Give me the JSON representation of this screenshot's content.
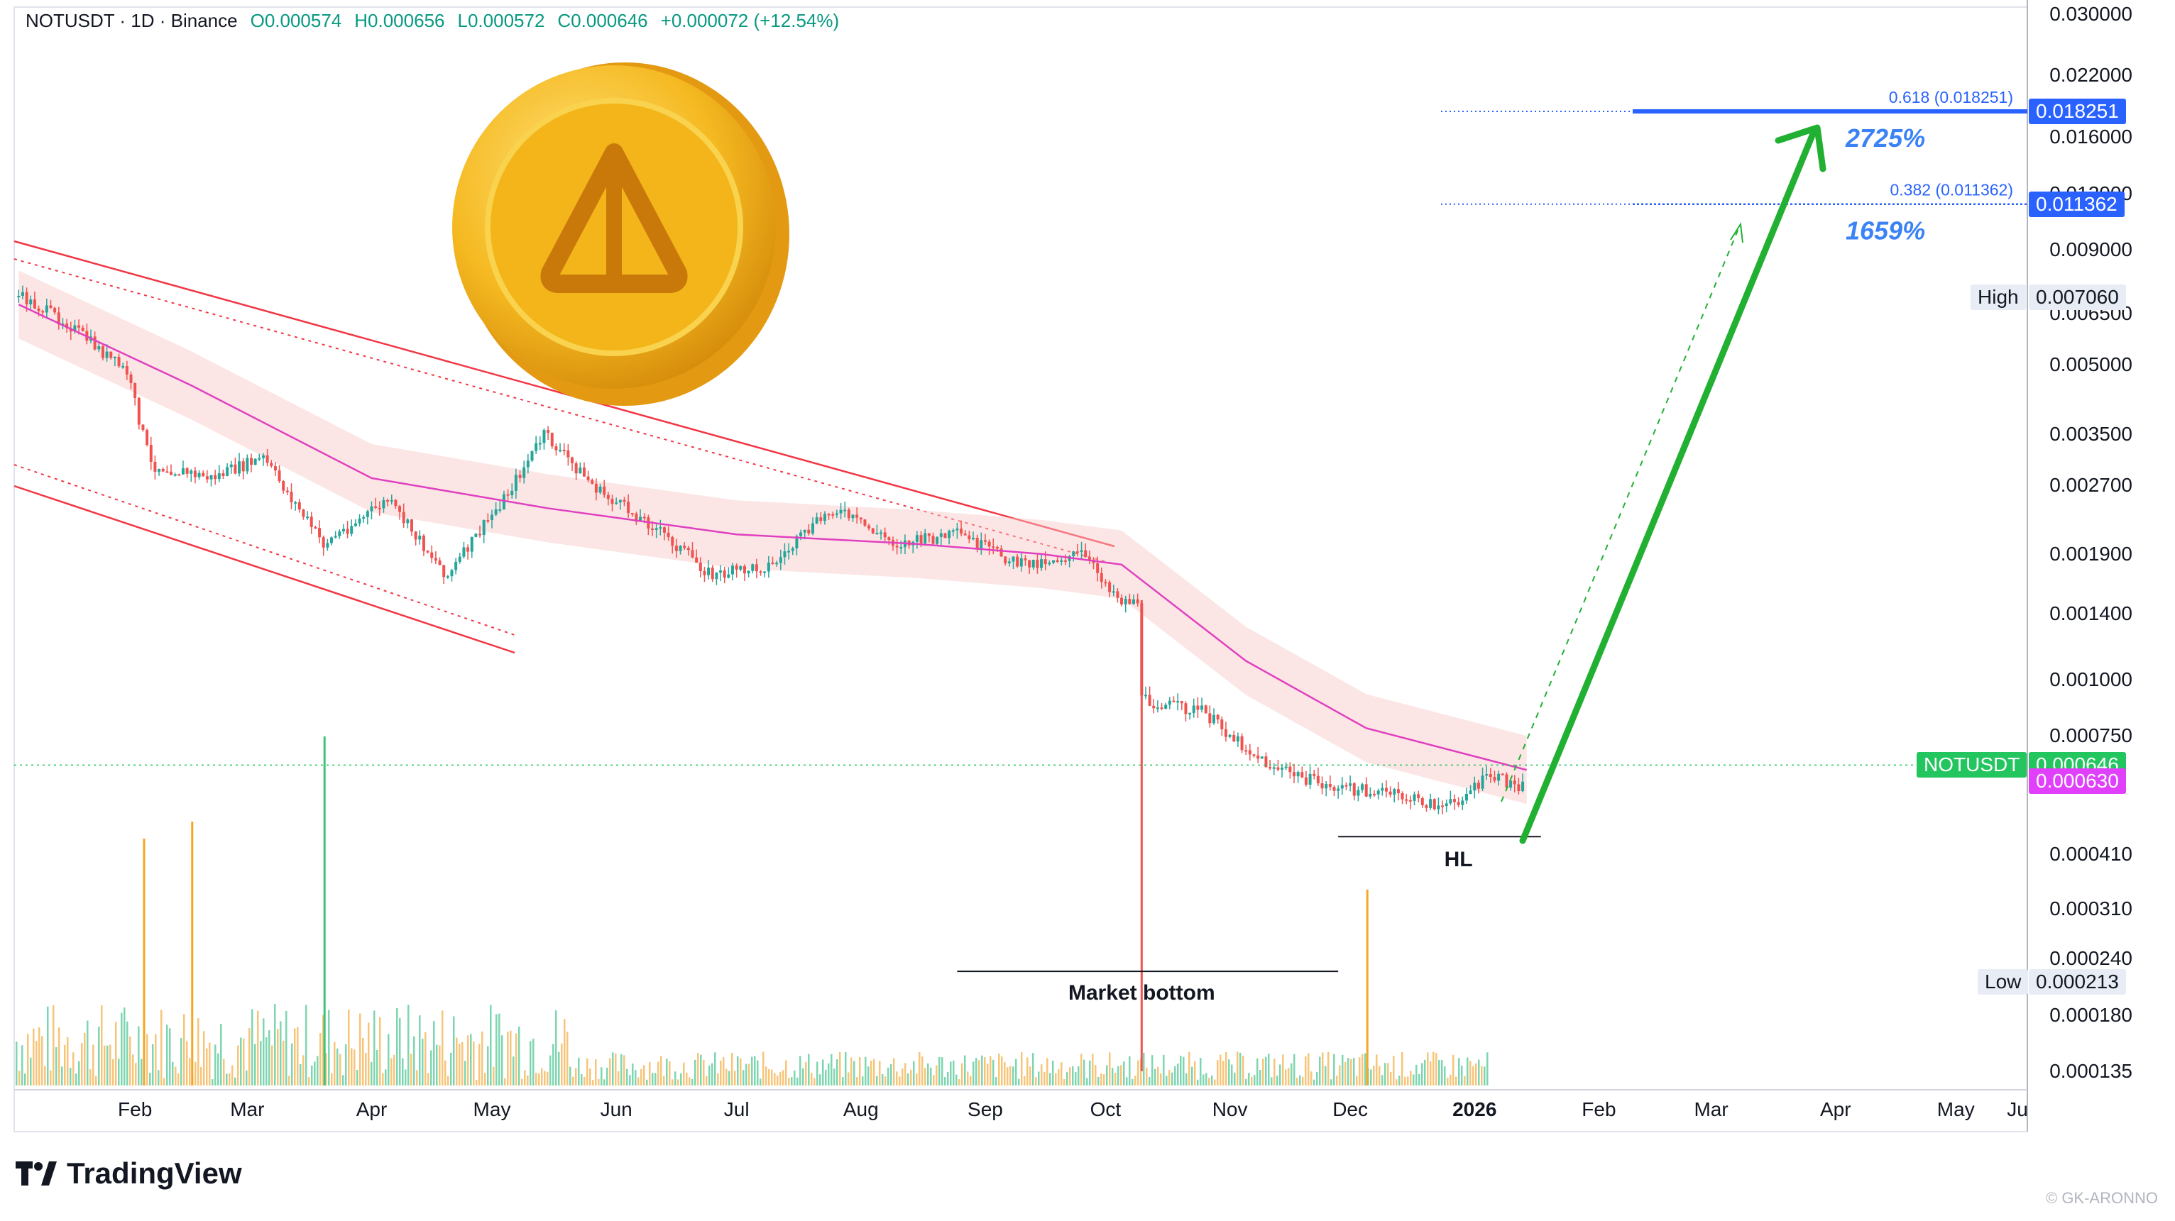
{
  "header": {
    "symbol": "NOTUSDT · 1D · Binance",
    "open": "O0.000574",
    "high": "H0.000656",
    "low": "L0.000572",
    "close": "C0.000646",
    "change": "+0.000072 (+12.54%)"
  },
  "colors": {
    "up": "#26a69a",
    "down": "#ef5350",
    "ma": "#e040c0",
    "channel": "#f23645",
    "arrow": "#22b033",
    "fib": "#2962ff",
    "last_price": "#22c55e",
    "ma_tag": "#e040fb"
  },
  "chart_data": {
    "type": "candlestick",
    "symbol": "NOTUSDT",
    "timeframe": "1D",
    "exchange": "Binance",
    "scale": "log",
    "y_ticks": [
      "0.030000",
      "0.022000",
      "0.016000",
      "0.012000",
      "0.009000",
      "0.006500",
      "0.005000",
      "0.003500",
      "0.002700",
      "0.001900",
      "0.001400",
      "0.001000",
      "0.000750",
      "0.000410",
      "0.000310",
      "0.000240",
      "0.000180",
      "0.000135"
    ],
    "x_ticks": [
      "Feb",
      "Mar",
      "Apr",
      "May",
      "Jun",
      "Jul",
      "Aug",
      "Sep",
      "Oct",
      "Nov",
      "Dec",
      "2026",
      "Feb",
      "Mar",
      "Apr",
      "May",
      "Ju"
    ],
    "close_path": [
      {
        "date": "2025-01-03",
        "price": 0.0071
      },
      {
        "date": "2025-01-15",
        "price": 0.0062
      },
      {
        "date": "2025-01-30",
        "price": 0.0048
      },
      {
        "date": "2025-02-05",
        "price": 0.003
      },
      {
        "date": "2025-02-20",
        "price": 0.0028
      },
      {
        "date": "2025-03-05",
        "price": 0.0031
      },
      {
        "date": "2025-03-20",
        "price": 0.002
      },
      {
        "date": "2025-04-05",
        "price": 0.0025
      },
      {
        "date": "2025-04-20",
        "price": 0.0017
      },
      {
        "date": "2025-05-05",
        "price": 0.0026
      },
      {
        "date": "2025-05-14",
        "price": 0.0035
      },
      {
        "date": "2025-05-28",
        "price": 0.0026
      },
      {
        "date": "2025-06-10",
        "price": 0.0022
      },
      {
        "date": "2025-06-25",
        "price": 0.0017
      },
      {
        "date": "2025-07-10",
        "price": 0.0018
      },
      {
        "date": "2025-07-25",
        "price": 0.0024
      },
      {
        "date": "2025-08-10",
        "price": 0.002
      },
      {
        "date": "2025-08-25",
        "price": 0.0021
      },
      {
        "date": "2025-09-10",
        "price": 0.0018
      },
      {
        "date": "2025-09-25",
        "price": 0.0019
      },
      {
        "date": "2025-10-05",
        "price": 0.0015
      },
      {
        "date": "2025-10-09",
        "price": 0.0015
      },
      {
        "date": "2025-10-10",
        "price": 0.0009
      },
      {
        "date": "2025-10-25",
        "price": 0.00085
      },
      {
        "date": "2025-11-10",
        "price": 0.00065
      },
      {
        "date": "2025-11-25",
        "price": 0.00058
      },
      {
        "date": "2025-12-10",
        "price": 0.00056
      },
      {
        "date": "2025-12-25",
        "price": 0.00052
      },
      {
        "date": "2026-01-05",
        "price": 0.00061
      },
      {
        "date": "2026-01-12",
        "price": 0.00058
      },
      {
        "date": "2026-01-14",
        "price": 0.000646
      }
    ],
    "ma_path": [
      {
        "date": "2025-01-03",
        "price": 0.0068
      },
      {
        "date": "2025-02-15",
        "price": 0.0045
      },
      {
        "date": "2025-04-01",
        "price": 0.0028
      },
      {
        "date": "2025-05-15",
        "price": 0.0024
      },
      {
        "date": "2025-07-01",
        "price": 0.0021
      },
      {
        "date": "2025-08-15",
        "price": 0.002
      },
      {
        "date": "2025-09-15",
        "price": 0.0019
      },
      {
        "date": "2025-10-05",
        "price": 0.0018
      },
      {
        "date": "2025-11-05",
        "price": 0.0011
      },
      {
        "date": "2025-12-05",
        "price": 0.00078
      },
      {
        "date": "2026-01-14",
        "price": 0.00063
      }
    ],
    "market_bottom_wick": {
      "date": "2025-10-10",
      "price": 0.000135
    },
    "volume_spikes": [
      {
        "date": "2025-02-03",
        "color": "orange",
        "rel": 0.58
      },
      {
        "date": "2025-02-15",
        "color": "orange",
        "rel": 0.62
      },
      {
        "date": "2025-03-20",
        "color": "green",
        "rel": 0.82
      },
      {
        "date": "2025-12-05",
        "color": "orange",
        "rel": 0.46
      }
    ],
    "last_price": 0.000646,
    "ma_value": 0.00063,
    "high": 0.00706,
    "low": 0.000213,
    "fib_levels": [
      {
        "ratio": "0.618",
        "price": 0.018251,
        "label": "0.618 (0.018251)",
        "gain": "2725%"
      },
      {
        "ratio": "0.382",
        "price": 0.011362,
        "label": "0.382 (0.011362)",
        "gain": "1659%"
      }
    ],
    "annotations": [
      "HL",
      "Market bottom"
    ],
    "axis_tags": {
      "symbol": "NOTUSDT",
      "last": "0.000646",
      "ma": "0.000630",
      "high_label": "High",
      "high_value": "0.007060",
      "low_label": "Low",
      "low_value": "0.000213",
      "fib1": "0.018251",
      "fib2": "0.011362"
    }
  },
  "footer": {
    "brand": "TradingView",
    "credit": "© GK-ARONNO"
  }
}
